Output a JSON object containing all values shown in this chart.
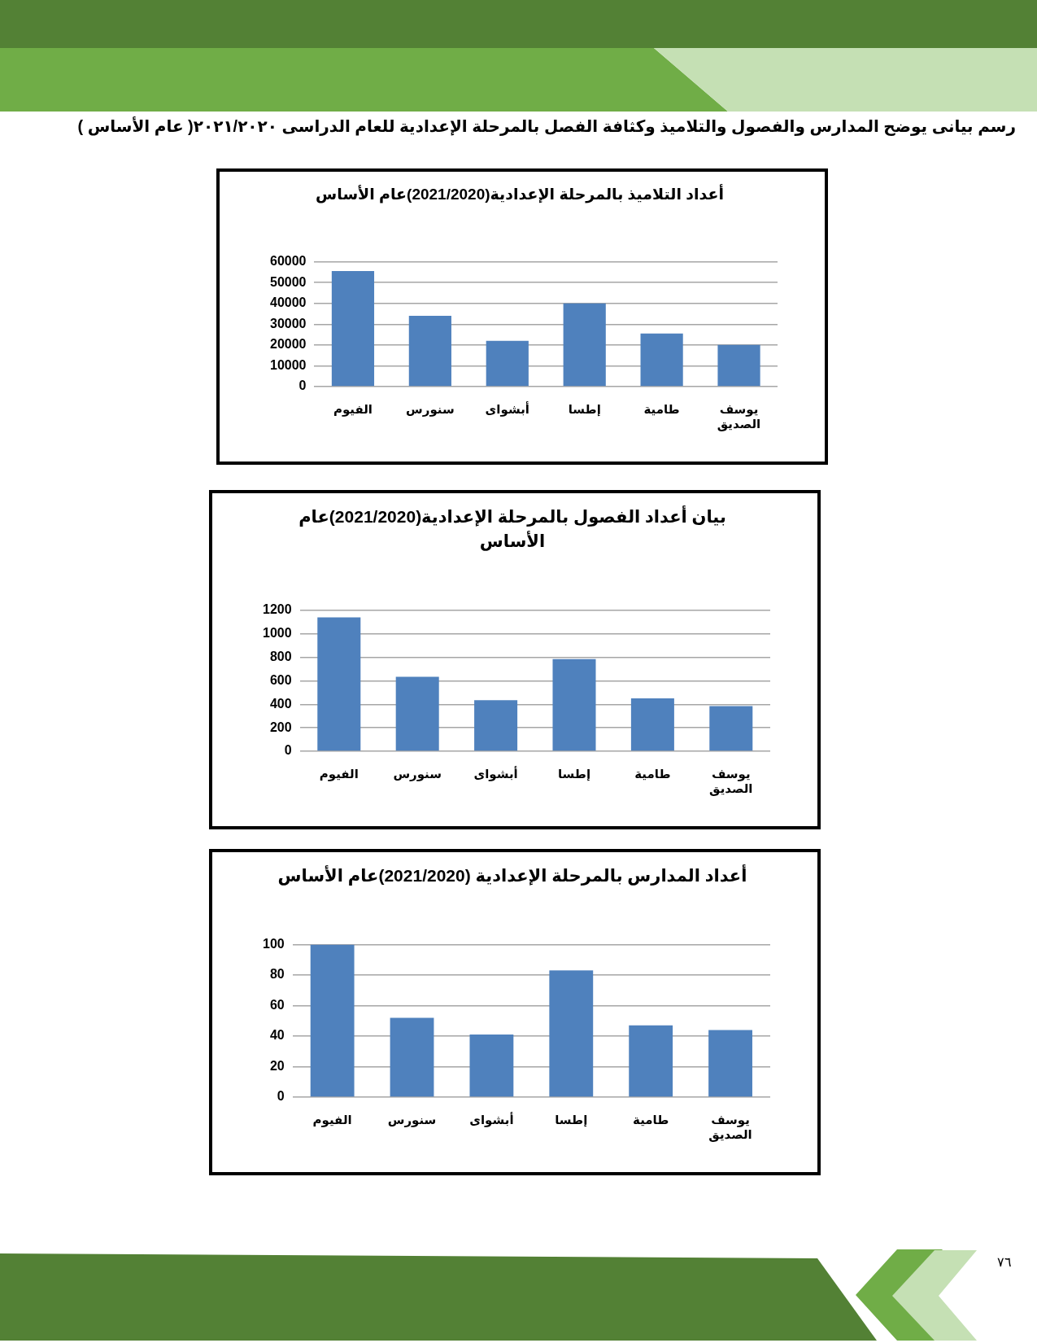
{
  "chart_data": [
    {
      "type": "other",
      "title": "رسم بيانى يوضح المدارس والفصول والتلاميذ وكثافة الفصل بالمرحلة الإعدادية للعام الدراسى ٢٠٢١/٢٠٢٠( عام الأساس )"
    },
    {
      "type": "bar",
      "title": "أعداد التلاميذ بالمرحلة الإعدادية(2021/2020)عام الأساس",
      "categories": [
        "الفيوم",
        "سنورس",
        "أبشواى",
        "إطسا",
        "طامية",
        "يوسف الصديق"
      ],
      "values": [
        55500,
        34000,
        22000,
        40000,
        25500,
        20000
      ],
      "color": "#4f81bd",
      "ylim": [
        0,
        60000
      ],
      "yticks": [
        0,
        10000,
        20000,
        30000,
        40000,
        50000,
        60000
      ],
      "grid": "y"
    },
    {
      "type": "bar",
      "title": "بيان أعداد الفصول بالمرحلة الإعدادية(2021/2020)عام الأساس",
      "categories": [
        "الفيوم",
        "سنورس",
        "أبشواى",
        "إطسا",
        "طامية",
        "يوسف الصديق"
      ],
      "values": [
        1140,
        635,
        435,
        785,
        450,
        385
      ],
      "color": "#4f81bd",
      "ylim": [
        0,
        1200
      ],
      "yticks": [
        0,
        200,
        400,
        600,
        800,
        1000,
        1200
      ],
      "grid": "y"
    },
    {
      "type": "bar",
      "title": "أعداد المدارس بالمرحلة الإعدادية (2021/2020)عام الأساس",
      "categories": [
        "الفيوم",
        "سنورس",
        "أبشواى",
        "إطسا",
        "طامية",
        "يوسف الصديق"
      ],
      "values": [
        100,
        52,
        41,
        83,
        47,
        44
      ],
      "color": "#4f81bd",
      "ylim": [
        0,
        100
      ],
      "yticks": [
        0,
        20,
        40,
        60,
        80,
        100
      ],
      "grid": "y"
    },
    {
      "type": "other",
      "annotations": [
        "٧٦"
      ]
    }
  ]
}
